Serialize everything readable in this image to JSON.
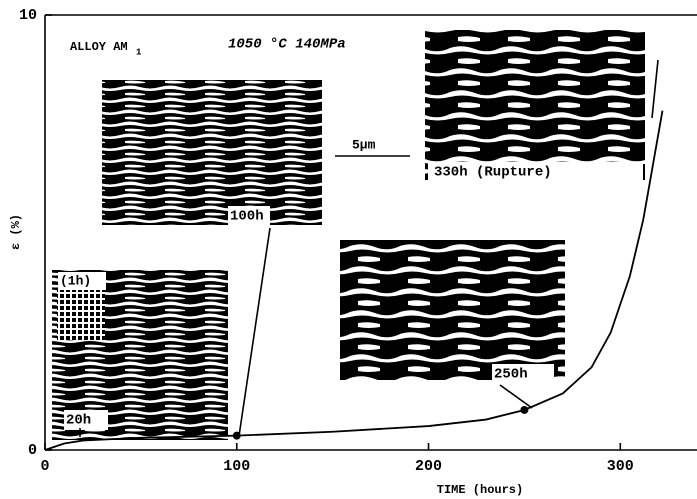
{
  "chart_data": {
    "type": "line",
    "x_label": "TIME (hours)",
    "y_label": "ε (%)",
    "x": [
      0,
      10,
      20,
      50,
      100,
      150,
      200,
      230,
      250,
      270,
      285,
      295,
      305,
      312,
      318,
      322
    ],
    "values": [
      0,
      0.15,
      0.22,
      0.28,
      0.33,
      0.42,
      0.55,
      0.7,
      0.92,
      1.3,
      1.9,
      2.7,
      4.0,
      5.3,
      6.8,
      7.8
    ],
    "markers_at_x": [
      100,
      250
    ],
    "color": "#000000",
    "xlim": [
      0,
      340
    ],
    "ylim": [
      0,
      10
    ],
    "xticks": [
      0,
      100,
      200,
      300
    ],
    "yticks": [
      0,
      10
    ],
    "annotations": {
      "alloy": "ALLOY AM",
      "alloy_sub": "1",
      "condition": "1050 °C 140MPa",
      "scale": "5μm",
      "t330": "330h (Rupture)",
      "t100": "100h",
      "t1": "(1h)",
      "t20": "20h",
      "t250": "250h"
    }
  }
}
